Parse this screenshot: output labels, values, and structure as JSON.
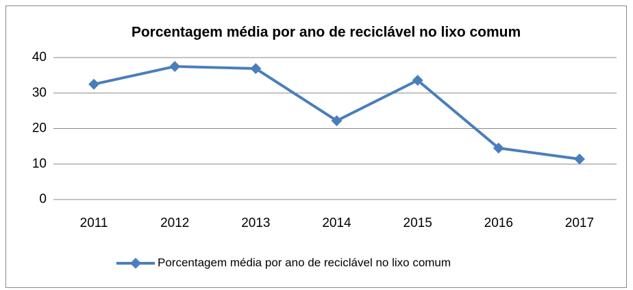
{
  "chart_data": {
    "type": "line",
    "title": "Porcentagem média por ano de reciclável no lixo comum",
    "categories": [
      "2011",
      "2012",
      "2013",
      "2014",
      "2015",
      "2016",
      "2017"
    ],
    "series": [
      {
        "name": "Porcentagem média por ano de reciclável no lixo comum",
        "color": "#4a7ebb",
        "values": [
          32.5,
          37.5,
          36.9,
          22.2,
          33.6,
          14.5,
          11.4
        ]
      }
    ],
    "ylim": [
      0,
      40
    ],
    "yticks": [
      0,
      10,
      20,
      30,
      40
    ],
    "grid": true,
    "legend": "bottom"
  }
}
